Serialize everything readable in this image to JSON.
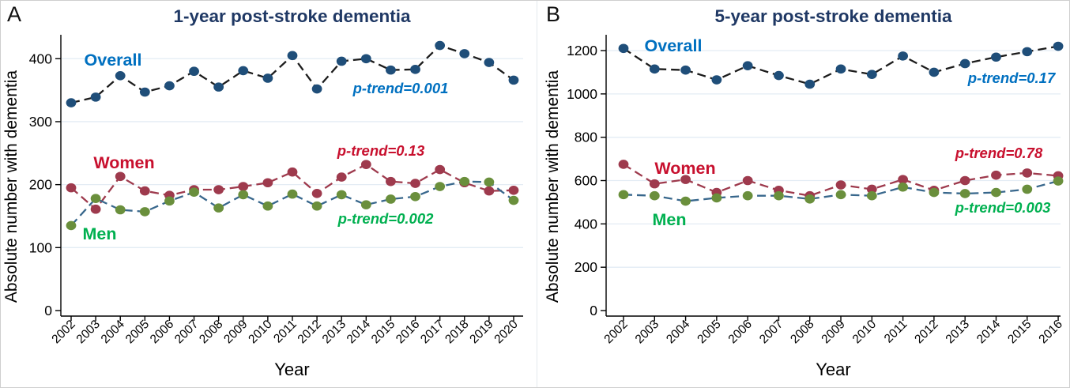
{
  "figure": {
    "panels": [
      {
        "id": "A",
        "label": "A",
        "title": "1-year post-stroke dementia",
        "title_color": "#1f3864",
        "xlabel": "Year",
        "ylabel": "Absolute number with dementia",
        "yticks": [
          0,
          100,
          200,
          300,
          400
        ],
        "ylim": [
          0,
          438
        ],
        "years": [
          2002,
          2003,
          2004,
          2005,
          2006,
          2007,
          2008,
          2009,
          2010,
          2011,
          2012,
          2013,
          2014,
          2015,
          2016,
          2017,
          2018,
          2019,
          2020
        ],
        "chart_type": "line",
        "series": [
          {
            "name": "Overall",
            "marker_color": "#1f4e79",
            "line_color": "#1c1c1c",
            "label_color": "#0070c0",
            "values": [
              330,
              339,
              373,
              347,
              357,
              380,
              355,
              381,
              369,
              405,
              352,
              396,
              400,
              382,
              383,
              421,
              408,
              394,
              366
            ],
            "label": {
              "text": "Overall",
              "x": 142,
              "y": 82
            },
            "ptrend": {
              "text": "p-trend=0.001",
              "x": 506,
              "y": 117
            }
          },
          {
            "name": "Women",
            "marker_color": "#9e3a4d",
            "line_color": "#9e3a4d",
            "label_color": "#c8102e",
            "values": [
              195,
              161,
              213,
              190,
              183,
              192,
              192,
              197,
              203,
              220,
              186,
              212,
              232,
              205,
              202,
              224,
              203,
              190,
              191
            ],
            "label": {
              "text": "Women",
              "x": 156,
              "y": 212
            },
            "ptrend": {
              "text": "p-trend=0.13",
              "x": 481,
              "y": 196
            }
          },
          {
            "name": "Men",
            "marker_color": "#6a8f3c",
            "line_color": "#38678c",
            "label_color": "#00b050",
            "values": [
              135,
              178,
              160,
              157,
              174,
              188,
              163,
              184,
              166,
              185,
              166,
              184,
              168,
              177,
              181,
              197,
              205,
              204,
              175
            ],
            "label": {
              "text": "Men",
              "x": 125,
              "y": 302
            },
            "ptrend": {
              "text": "p-trend=0.002",
              "x": 487,
              "y": 282
            }
          }
        ]
      },
      {
        "id": "B",
        "label": "B",
        "title": "5-year post-stroke dementia",
        "title_color": "#1f3864",
        "xlabel": "Year",
        "ylabel": "Absolute number with dementia",
        "yticks": [
          0,
          200,
          400,
          600,
          800,
          1000,
          1200
        ],
        "ylim": [
          0,
          1273
        ],
        "years": [
          2002,
          2003,
          2004,
          2005,
          2006,
          2007,
          2008,
          2009,
          2010,
          2011,
          2012,
          2013,
          2014,
          2015,
          2016
        ],
        "chart_type": "line",
        "series": [
          {
            "name": "Overall",
            "marker_color": "#1f4e79",
            "line_color": "#1c1c1c",
            "label_color": "#0070c0",
            "values": [
              1210,
              1115,
              1110,
              1065,
              1130,
              1085,
              1045,
              1115,
              1090,
              1175,
              1100,
              1140,
              1170,
              1195,
              1220
            ],
            "label": {
              "text": "Overall",
              "x": 172,
              "y": 64
            },
            "ptrend": {
              "text": "p-trend=0.17",
              "x": 600,
              "y": 104
            }
          },
          {
            "name": "Women",
            "marker_color": "#9e3a4d",
            "line_color": "#9e3a4d",
            "label_color": "#c8102e",
            "values": [
              675,
              585,
              605,
              545,
              600,
              555,
              530,
              580,
              560,
              605,
              555,
              600,
              625,
              635,
              622
            ],
            "label": {
              "text": "Women",
              "x": 187,
              "y": 219
            },
            "ptrend": {
              "text": "p-trend=0.78",
              "x": 584,
              "y": 199
            }
          },
          {
            "name": "Men",
            "marker_color": "#6a8f3c",
            "line_color": "#38678c",
            "label_color": "#00b050",
            "values": [
              535,
              530,
              505,
              520,
              530,
              530,
              515,
              535,
              530,
              570,
              545,
              540,
              545,
              560,
              598
            ],
            "label": {
              "text": "Men",
              "x": 167,
              "y": 284
            },
            "ptrend": {
              "text": "p-trend=0.003",
              "x": 589,
              "y": 268
            }
          }
        ]
      }
    ]
  },
  "chart_data": [
    {
      "type": "line",
      "title": "1-year post-stroke dementia",
      "xlabel": "Year",
      "ylabel": "Absolute number with dementia",
      "ylim": [
        0,
        438
      ],
      "x": [
        2002,
        2003,
        2004,
        2005,
        2006,
        2007,
        2008,
        2009,
        2010,
        2011,
        2012,
        2013,
        2014,
        2015,
        2016,
        2017,
        2018,
        2019,
        2020
      ],
      "series": [
        {
          "name": "Overall",
          "values": [
            330,
            339,
            373,
            347,
            357,
            380,
            355,
            381,
            369,
            405,
            352,
            396,
            400,
            382,
            383,
            421,
            408,
            394,
            366
          ],
          "p_trend": "0.001"
        },
        {
          "name": "Women",
          "values": [
            195,
            161,
            213,
            190,
            183,
            192,
            192,
            197,
            203,
            220,
            186,
            212,
            232,
            205,
            202,
            224,
            203,
            190,
            191
          ],
          "p_trend": "0.13"
        },
        {
          "name": "Men",
          "values": [
            135,
            178,
            160,
            157,
            174,
            188,
            163,
            184,
            166,
            185,
            166,
            184,
            168,
            177,
            181,
            197,
            205,
            204,
            175
          ],
          "p_trend": "0.002"
        }
      ],
      "legend_position": "inline-labels",
      "grid": "horizontal"
    },
    {
      "type": "line",
      "title": "5-year post-stroke dementia",
      "xlabel": "Year",
      "ylabel": "Absolute number with dementia",
      "ylim": [
        0,
        1273
      ],
      "x": [
        2002,
        2003,
        2004,
        2005,
        2006,
        2007,
        2008,
        2009,
        2010,
        2011,
        2012,
        2013,
        2014,
        2015,
        2016
      ],
      "series": [
        {
          "name": "Overall",
          "values": [
            1210,
            1115,
            1110,
            1065,
            1130,
            1085,
            1045,
            1115,
            1090,
            1175,
            1100,
            1140,
            1170,
            1195,
            1220
          ],
          "p_trend": "0.17"
        },
        {
          "name": "Women",
          "values": [
            675,
            585,
            605,
            545,
            600,
            555,
            530,
            580,
            560,
            605,
            555,
            600,
            625,
            635,
            622
          ],
          "p_trend": "0.78"
        },
        {
          "name": "Men",
          "values": [
            535,
            530,
            505,
            520,
            530,
            530,
            515,
            535,
            530,
            570,
            545,
            540,
            545,
            560,
            598
          ],
          "p_trend": "0.003"
        }
      ],
      "legend_position": "inline-labels",
      "grid": "horizontal"
    }
  ]
}
